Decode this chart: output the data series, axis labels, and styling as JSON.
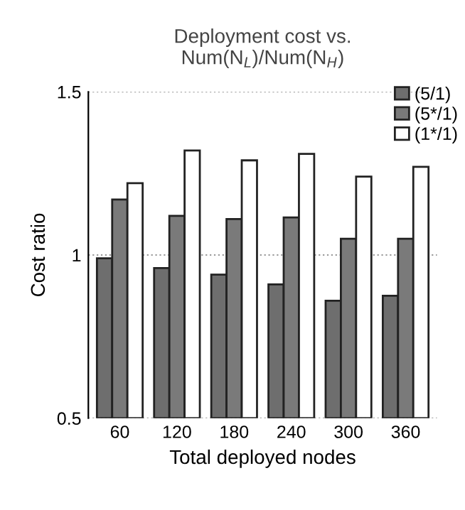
{
  "chart_data": {
    "type": "bar",
    "title": "Deployment cost vs.\nNum(N$_{L}$)/Num(N$_{H}$)",
    "xlabel": "Total deployed nodes",
    "ylabel": "Cost ratio",
    "categories": [
      "60",
      "120",
      "180",
      "240",
      "300",
      "360"
    ],
    "series": [
      {
        "name": "(5/1)",
        "color": "#6e6e6e",
        "values": [
          0.99,
          0.96,
          0.94,
          0.91,
          0.86,
          0.875
        ]
      },
      {
        "name": "(5*/1)",
        "color": "#7a7a7a",
        "values": [
          1.17,
          1.12,
          1.11,
          1.115,
          1.05,
          1.05
        ]
      },
      {
        "name": "(1*/1)",
        "color": "#ffffff",
        "values": [
          1.22,
          1.32,
          1.29,
          1.31,
          1.24,
          1.27
        ]
      }
    ],
    "ylim": [
      0.5,
      1.5
    ],
    "yticks": [
      0.5,
      1,
      1.5
    ],
    "grid": "y",
    "legend": "top right"
  }
}
